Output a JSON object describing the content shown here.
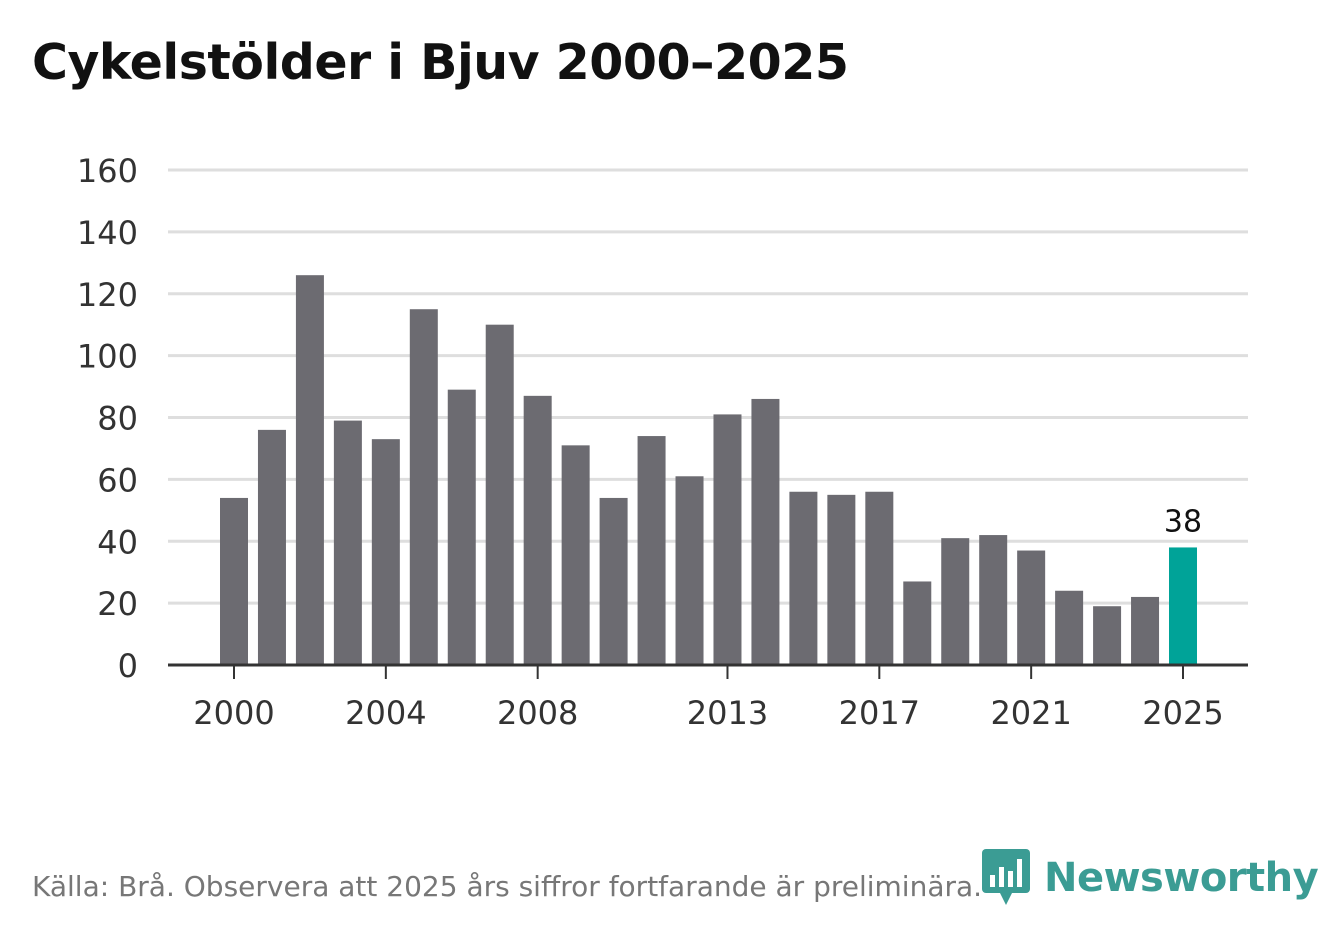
{
  "title": "Cykelstölder i Bjuv 2000–2025",
  "source": "Källa: Brå. Observera att 2025 års siffror fortfarande är preliminära.",
  "brand": {
    "name": "Newsworthy",
    "logo_icon": "newsworthy-chart-icon"
  },
  "colors": {
    "bar": "#6c6b71",
    "highlight": "#00a398",
    "grid": "#dedede",
    "axis": "#333333",
    "tick_text": "#333333",
    "brand": "#3b9c94"
  },
  "chart_data": {
    "type": "bar",
    "title": "Cykelstölder i Bjuv 2000–2025",
    "xlabel": "",
    "ylabel": "",
    "ylim": [
      0,
      160
    ],
    "yticks": [
      0,
      20,
      40,
      60,
      80,
      100,
      120,
      140,
      160
    ],
    "grid": true,
    "categories": [
      "2000",
      "2001",
      "2002",
      "2003",
      "2004",
      "2005",
      "2006",
      "2007",
      "2008",
      "2009",
      "2010",
      "2011",
      "2012",
      "2013",
      "2014",
      "2015",
      "2016",
      "2017",
      "2018",
      "2019",
      "2020",
      "2021",
      "2022",
      "2023",
      "2024",
      "2025"
    ],
    "values": [
      54,
      76,
      126,
      79,
      73,
      115,
      89,
      110,
      87,
      71,
      54,
      74,
      61,
      81,
      86,
      56,
      55,
      56,
      27,
      41,
      42,
      37,
      24,
      19,
      22,
      38
    ],
    "xtick_labels": [
      "2000",
      "2004",
      "2008",
      "2013",
      "2017",
      "2021",
      "2025"
    ],
    "highlight_category": "2025",
    "annotation": {
      "category": "2025",
      "text": "38"
    }
  }
}
